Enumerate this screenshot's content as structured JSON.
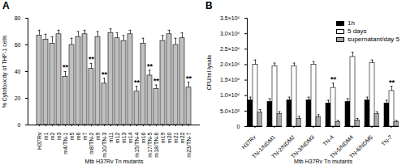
{
  "chart_data": [
    {
      "type": "bar",
      "title": "A",
      "categories": [
        "H37Rv",
        "m1",
        "m2",
        "m3",
        "m4/TN-1",
        "m5",
        "m6",
        "m7",
        "m8/TN-2",
        "m9",
        "m10/TN-3",
        "m11",
        "m12",
        "m13",
        "m14",
        "m15/TN-4",
        "m16",
        "m17/TN-5",
        "m18/TN-6",
        "m19",
        "m20",
        "m21",
        "m22",
        "m23/TN-7"
      ],
      "values": [
        67,
        64,
        61,
        68,
        36,
        60,
        66,
        68,
        42,
        66,
        31,
        69,
        65,
        63,
        68,
        25,
        61,
        37,
        27,
        63,
        68,
        60,
        65,
        28
      ],
      "errors": [
        4,
        4,
        5,
        3,
        4,
        5,
        4,
        3,
        4,
        4,
        4,
        3,
        4,
        4,
        3,
        4,
        4,
        4,
        3,
        4,
        3,
        5,
        4,
        4
      ],
      "color": "#c0c0c0",
      "xlabel": "Mtb H37Rv Tn mutants",
      "ylabel": "% Cytotoxicity of THP-1 cells",
      "ylim": [
        0,
        80
      ],
      "yticks": [
        0,
        20,
        40,
        60,
        80
      ],
      "annotations": [
        {
          "category": "m4/TN-1",
          "text": "**"
        },
        {
          "category": "m8/TN-2",
          "text": "**"
        },
        {
          "category": "m10/TN-3",
          "text": "**"
        },
        {
          "category": "m15/TN-4",
          "text": "**"
        },
        {
          "category": "m17/TN-5",
          "text": "**"
        },
        {
          "category": "m18/TN-6",
          "text": "**"
        },
        {
          "category": "m23/TN-7",
          "text": "**"
        }
      ]
    },
    {
      "type": "bar",
      "title": "B",
      "categories": [
        "H37Rv",
        "TN-1/NDM1",
        "TN-2/NDM2",
        "TN-3/NDM3",
        "TN-4",
        "TN-5/NDM4",
        "TN-6/NDM5",
        "TN-7"
      ],
      "series": [
        {
          "name": "1h",
          "color": "#000000",
          "values": [
            850000,
            800000,
            850000,
            850000,
            750000,
            800000,
            850000,
            750000
          ],
          "errors": [
            100000,
            100000,
            100000,
            100000,
            100000,
            100000,
            100000,
            100000
          ]
        },
        {
          "name": "5 days",
          "color": "#ffffff",
          "values": [
            2000000,
            1950000,
            1950000,
            2000000,
            1250000,
            2250000,
            2050000,
            1150000
          ],
          "errors": [
            150000,
            100000,
            100000,
            100000,
            150000,
            150000,
            100000,
            150000
          ]
        },
        {
          "name": "supernatant/day 5",
          "color": "#aaaaaa",
          "values": [
            450000,
            400000,
            250000,
            300000,
            150000,
            200000,
            400000,
            150000
          ],
          "errors": [
            100000,
            80000,
            80000,
            80000,
            50000,
            60000,
            80000,
            50000
          ]
        }
      ],
      "xlabel": "Mtb H37Rv Tn mutants",
      "ylabel": "CFU/ml lysate",
      "ylim": [
        0,
        3500000
      ],
      "yticks": [
        0,
        {
          "value": 500000,
          "label": "5.0×10⁵"
        },
        {
          "value": 1000000,
          "label": "1.0×10⁶"
        },
        {
          "value": 1500000,
          "label": "1.5×10⁶"
        },
        {
          "value": 2000000,
          "label": "2.0×10⁶"
        },
        {
          "value": 2500000,
          "label": "2.5×10⁶"
        },
        {
          "value": 3000000,
          "label": "3.0×10⁶"
        },
        {
          "value": 3500000,
          "label": "3.5×10⁶"
        }
      ],
      "legend": "top-right",
      "annotations": [
        {
          "category": "TN-4",
          "series": "5 days",
          "text": "**"
        },
        {
          "category": "TN-7",
          "series": "5 days",
          "text": "**"
        }
      ]
    }
  ]
}
